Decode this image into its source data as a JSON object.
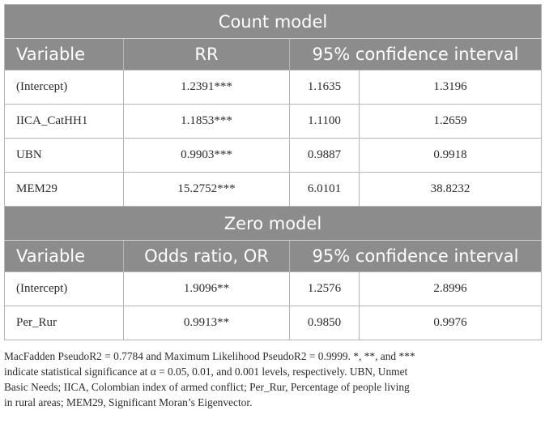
{
  "count_model": {
    "title": "Count model",
    "headers": [
      "Variable",
      "RR",
      "95% confidence interval"
    ],
    "rows": [
      {
        "variable": "(Intercept)",
        "estimate": "1.2391***",
        "ci_low": "1.1635",
        "ci_high": "1.3196"
      },
      {
        "variable": "IICA_CatHH1",
        "estimate": "1.1853***",
        "ci_low": "1.1100",
        "ci_high": "1.2659"
      },
      {
        "variable": "UBN",
        "estimate": "0.9903***",
        "ci_low": "0.9887",
        "ci_high": "0.9918"
      },
      {
        "variable": "MEM29",
        "estimate": "15.2752***",
        "ci_low": "6.0101",
        "ci_high": "38.8232"
      }
    ]
  },
  "zero_model": {
    "title": "Zero model",
    "headers": [
      "Variable",
      "Odds ratio, OR",
      "95% confidence interval"
    ],
    "rows": [
      {
        "variable": "(Intercept)",
        "estimate": "1.9096**",
        "ci_low": "1.2576",
        "ci_high": "2.8996"
      },
      {
        "variable": "Per_Rur",
        "estimate": "0.9913**",
        "ci_low": "0.9850",
        "ci_high": "0.9976"
      }
    ]
  },
  "footnote": {
    "lines": [
      "MacFadden PseudoR2 = 0.7784 and Maximum Likelihood PseudoR2 = 0.9999. *, **, and ***",
      "indicate statistical significance at α = 0.05, 0.01, and 0.001 levels, respectively. UBN, Unmet",
      "Basic Needs; IICA, Colombian index of armed conflict; Per_Rur, Percentage of people living",
      "in rural areas; MEM29, Significant Moran’s Eigenvector."
    ]
  }
}
